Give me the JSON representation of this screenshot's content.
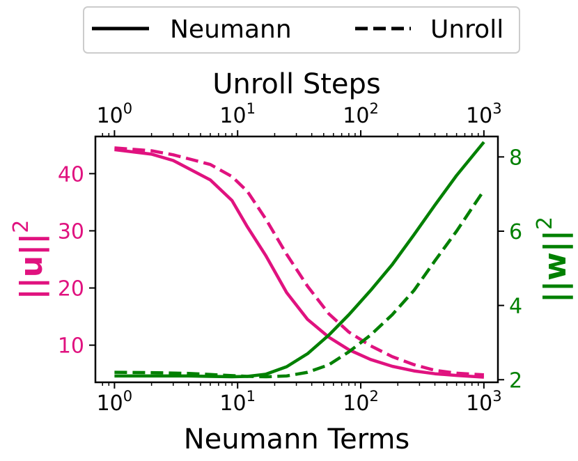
{
  "chart_data": {
    "type": "line",
    "xlabel_bottom": "Neumann Terms",
    "xlabel_top": "Unroll Steps",
    "x_scale": "log",
    "xlim": [
      0.7,
      1300
    ],
    "x_ticks": [
      {
        "value": 1,
        "base": "10",
        "exp": "0"
      },
      {
        "value": 10,
        "base": "10",
        "exp": "1"
      },
      {
        "value": 100,
        "base": "10",
        "exp": "2"
      },
      {
        "value": 1000,
        "base": "10",
        "exp": "3"
      }
    ],
    "y_left": {
      "label_base": "||u||",
      "label_exp": "2",
      "color": "#e0127f",
      "ylim": [
        3.5,
        46.5
      ],
      "ticks": [
        10,
        20,
        30,
        40
      ]
    },
    "y_right": {
      "label_base": "||w||",
      "label_exp": "2",
      "color": "#008000",
      "ylim": [
        1.93,
        8.55
      ],
      "ticks": [
        2,
        4,
        6,
        8
      ]
    },
    "x": [
      1,
      2,
      3,
      4,
      6,
      9,
      12,
      17,
      25,
      37,
      55,
      80,
      120,
      180,
      270,
      400,
      600,
      1000
    ],
    "series": [
      {
        "axis": "left",
        "style": "solid",
        "color": "#e0127f",
        "values": [
          44.2,
          43.4,
          42.3,
          40.9,
          38.9,
          35.3,
          30.7,
          25.6,
          19.2,
          14.5,
          11.4,
          9.2,
          7.5,
          6.3,
          5.5,
          5.0,
          4.7,
          4.4
        ]
      },
      {
        "axis": "left",
        "style": "dashed",
        "color": "#e0127f",
        "values": [
          44.5,
          44.0,
          43.3,
          42.6,
          41.6,
          39.5,
          36.9,
          32.0,
          25.9,
          20.3,
          15.5,
          12.3,
          9.9,
          8.0,
          6.6,
          5.6,
          5.1,
          4.8
        ]
      },
      {
        "axis": "right",
        "style": "solid",
        "color": "#008000",
        "values": [
          2.1,
          2.1,
          2.1,
          2.1,
          2.09,
          2.08,
          2.09,
          2.15,
          2.35,
          2.7,
          3.2,
          3.75,
          4.4,
          5.1,
          5.9,
          6.7,
          7.5,
          8.4
        ]
      },
      {
        "axis": "right",
        "style": "dashed",
        "color": "#008000",
        "values": [
          2.2,
          2.19,
          2.18,
          2.17,
          2.14,
          2.11,
          2.09,
          2.08,
          2.1,
          2.2,
          2.4,
          2.75,
          3.2,
          3.75,
          4.4,
          5.2,
          6.0,
          7.1
        ]
      }
    ],
    "legend": {
      "placement": "top-center",
      "entries": [
        {
          "label": "Neumann",
          "style": "solid"
        },
        {
          "label": "Unroll",
          "style": "dashed"
        }
      ]
    },
    "grid": false
  }
}
